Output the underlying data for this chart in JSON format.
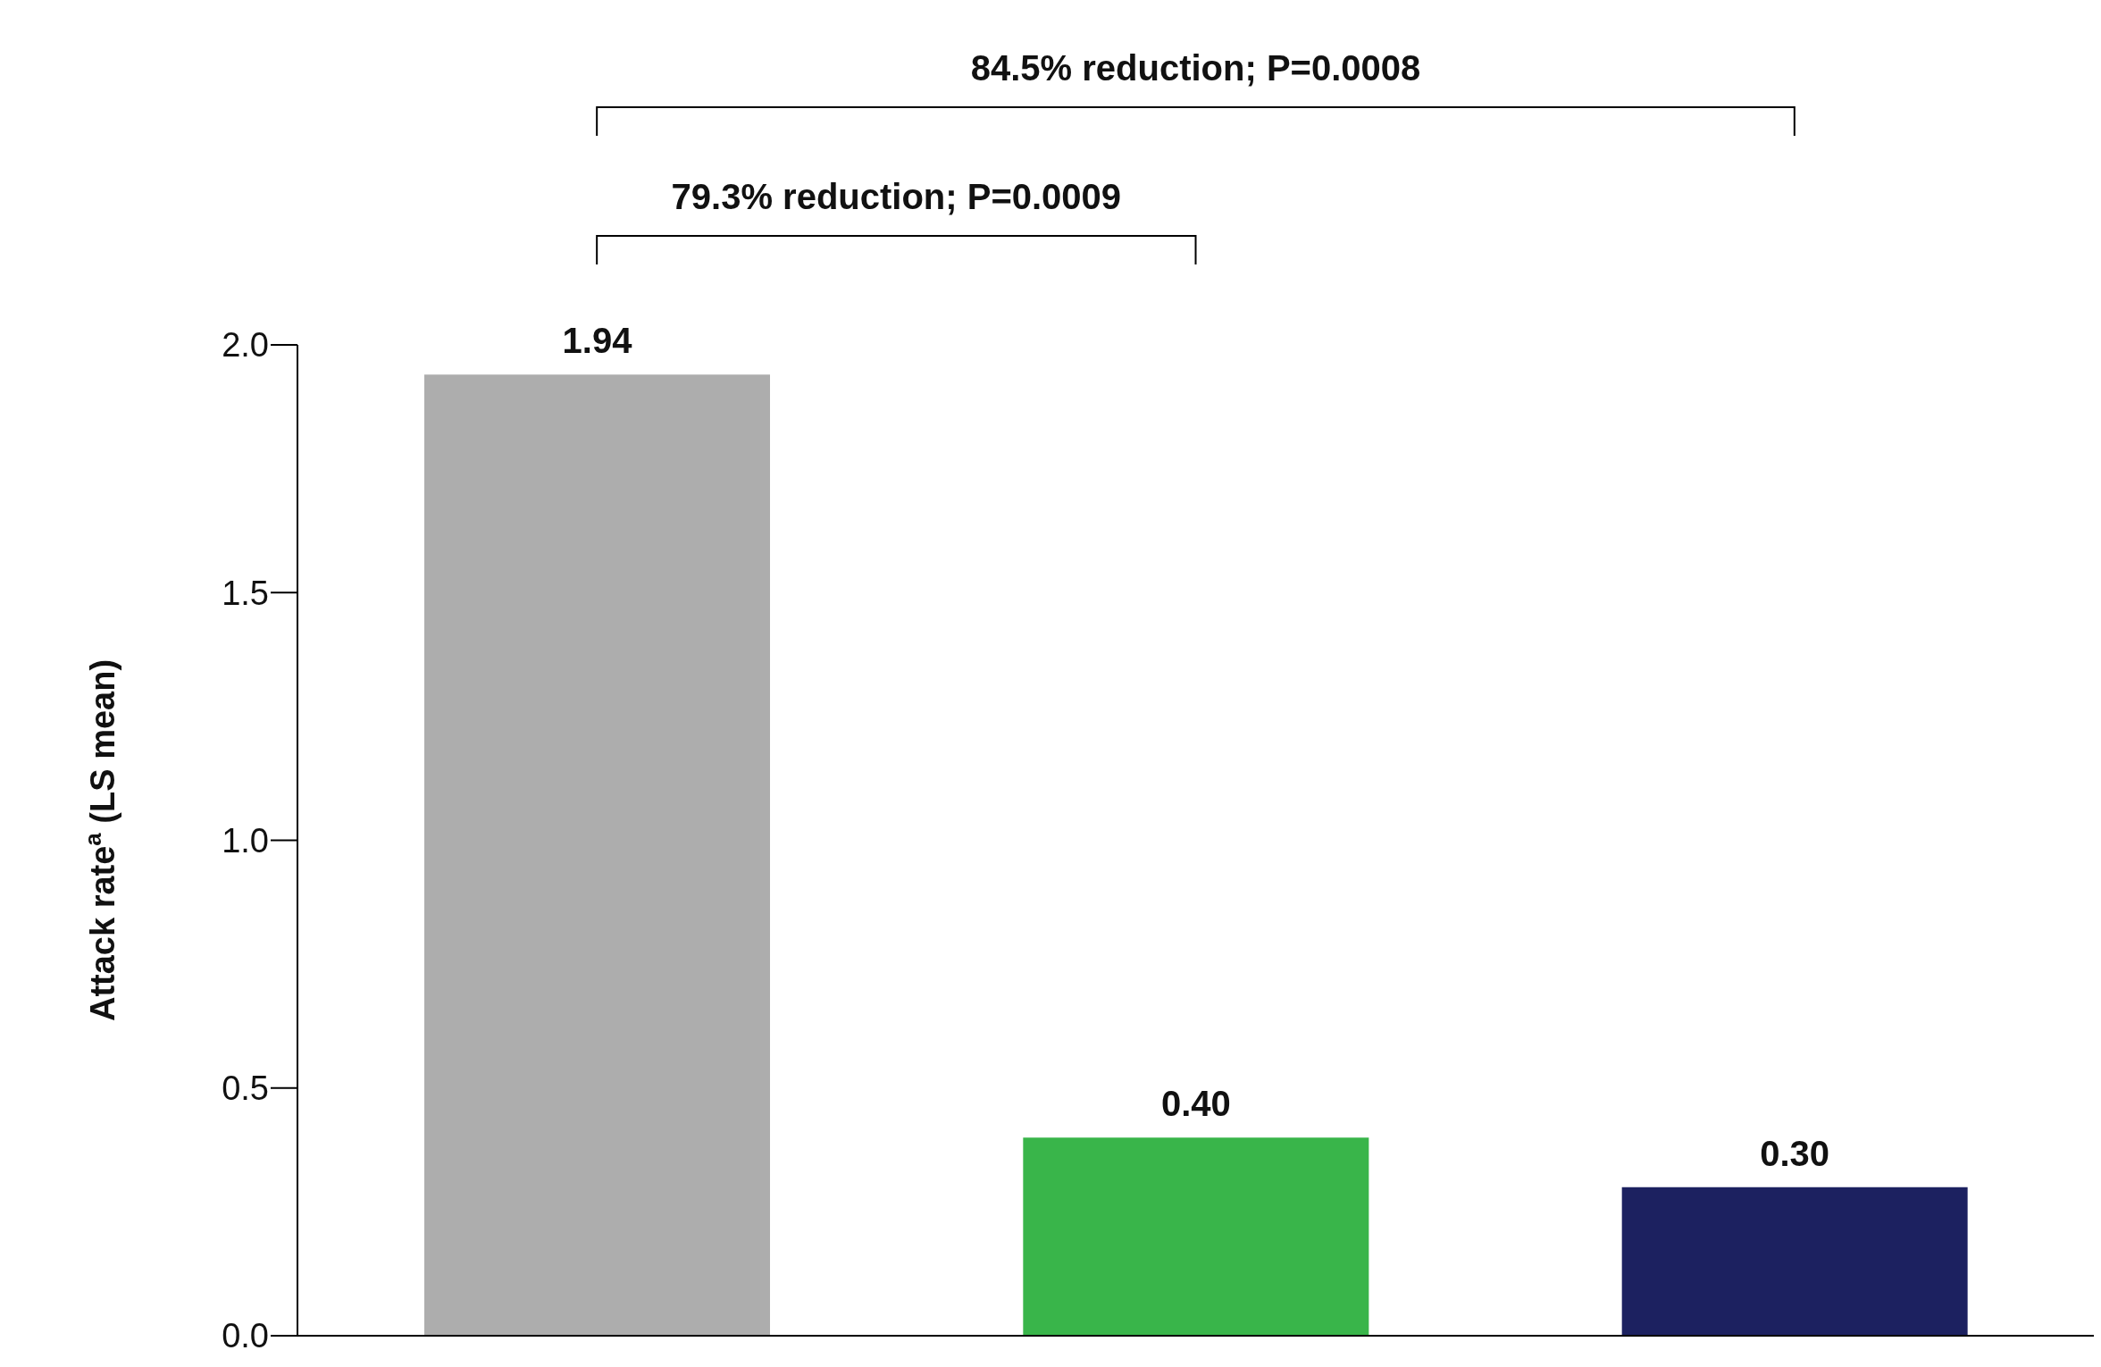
{
  "chart_data": {
    "type": "bar",
    "ylabel": "Attack rate$^{a}$ (LS mean)",
    "categories": [
      null,
      null,
      null
    ],
    "values": [
      1.94,
      0.4,
      0.3
    ],
    "colors": [
      "#adadad",
      "#39b54a",
      "#1c2160"
    ],
    "value_labels": [
      "1.94",
      "0.40",
      "0.30"
    ],
    "ylim": [
      0,
      2.0
    ],
    "yticks": [
      {
        "value": 0,
        "label": "0.0"
      },
      {
        "value": 0.5,
        "label": "0.5"
      },
      {
        "value": 1,
        "label": "1.0"
      },
      {
        "value": 1.5,
        "label": "1.5"
      },
      {
        "value": 2,
        "label": "2.0"
      }
    ],
    "grid": false,
    "legend": false,
    "annotations": [
      "84.5% reduction; P=0.0008",
      "79.3% reduction; P=0.0009"
    ]
  }
}
